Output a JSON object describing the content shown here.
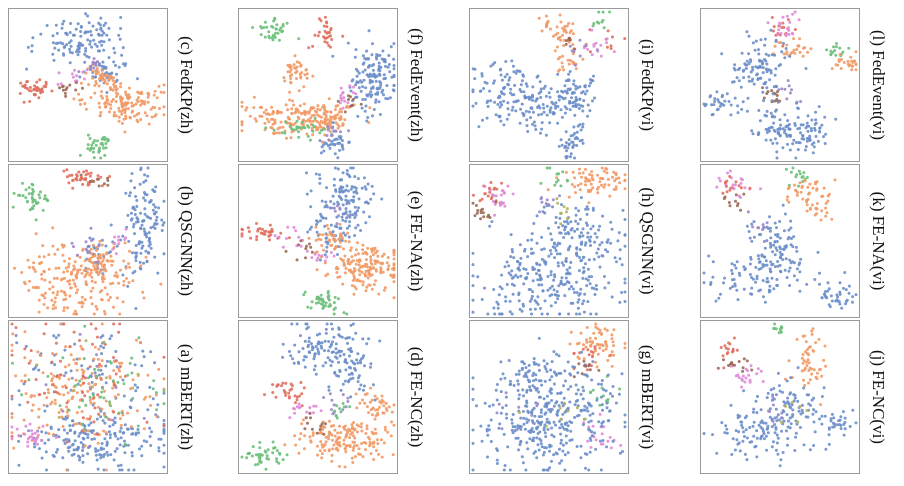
{
  "colors": {
    "blue": "#6c8ec9",
    "orange": "#f29a66",
    "green": "#6cbf7a",
    "red": "#e0705f",
    "pink": "#e08bd8",
    "brown": "#9b6a55",
    "purple": "#9b86c9",
    "olive": "#b2b35a"
  },
  "chart_data": [
    {
      "type": "scatter",
      "panel": "c",
      "caption": "(c) FedKP(zh)"
    },
    {
      "type": "scatter",
      "panel": "b",
      "caption": "(b) QSGNN(zh)"
    },
    {
      "type": "scatter",
      "panel": "a",
      "caption": "(a) mBERT(zh)"
    },
    {
      "type": "scatter",
      "panel": "f",
      "caption": "(f) FedEvent(zh)"
    },
    {
      "type": "scatter",
      "panel": "e",
      "caption": "(e) FE-NA(zh)"
    },
    {
      "type": "scatter",
      "panel": "d",
      "caption": "(d) FE-NC(zh)"
    },
    {
      "type": "scatter",
      "panel": "i",
      "caption": "(i) FedKP(vi)"
    },
    {
      "type": "scatter",
      "panel": "h",
      "caption": "(h) QSGNN(vi)"
    },
    {
      "type": "scatter",
      "panel": "g",
      "caption": "(g) mBERT(vi)"
    },
    {
      "type": "scatter",
      "panel": "l",
      "caption": "(l) FedEvent(vi)"
    },
    {
      "type": "scatter",
      "panel": "k",
      "caption": "(k) FE-NA(vi)"
    },
    {
      "type": "scatter",
      "panel": "j",
      "caption": "(j) FE-NC(vi)"
    }
  ]
}
